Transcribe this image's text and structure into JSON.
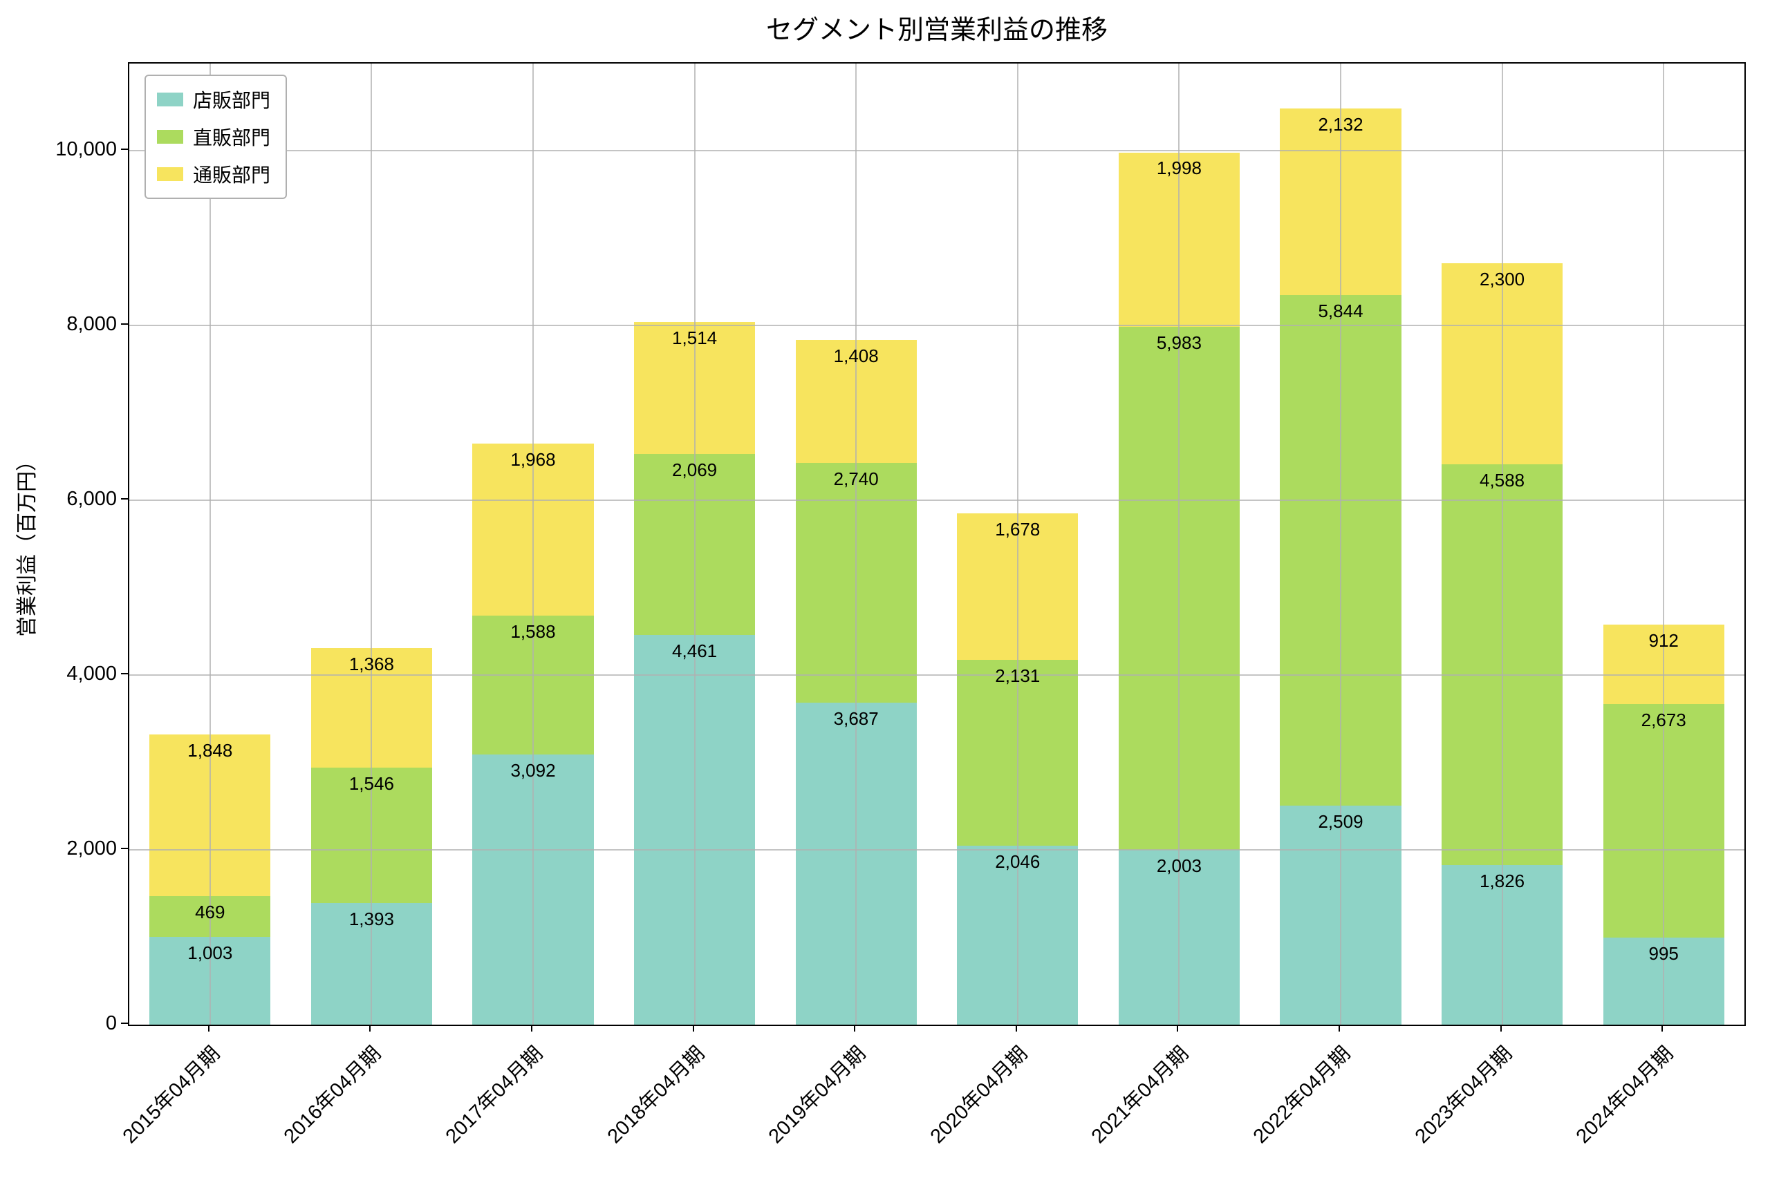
{
  "chart_data": {
    "type": "bar",
    "stacked": true,
    "title": "セグメント別営業利益の推移",
    "ylabel": "営業利益（百万円）",
    "xlabel": "",
    "categories": [
      "2015年04月期",
      "2016年04月期",
      "2017年04月期",
      "2018年04月期",
      "2019年04月期",
      "2020年04月期",
      "2021年04月期",
      "2022年04月期",
      "2023年04月期",
      "2024年04月期"
    ],
    "series": [
      {
        "name": "店販部門",
        "color": "#8ED3C6",
        "values": [
          1003,
          1393,
          3092,
          4461,
          3687,
          2046,
          2003,
          2509,
          1826,
          995
        ]
      },
      {
        "name": "直販部門",
        "color": "#ACDB5E",
        "values": [
          469,
          1546,
          1588,
          2069,
          2740,
          2131,
          5983,
          5844,
          4588,
          2673
        ]
      },
      {
        "name": "通販部門",
        "color": "#F7E45E",
        "values": [
          1848,
          1368,
          1968,
          1514,
          1408,
          1678,
          1998,
          2132,
          2300,
          912
        ]
      }
    ],
    "yticks": [
      0,
      2000,
      4000,
      6000,
      8000,
      10000
    ],
    "ylim": [
      0,
      11000
    ],
    "grid": true,
    "legend_position": "upper-left",
    "bar_value_labels": true,
    "grid_color": "#b0b0b0",
    "spine_color": "#000000"
  }
}
